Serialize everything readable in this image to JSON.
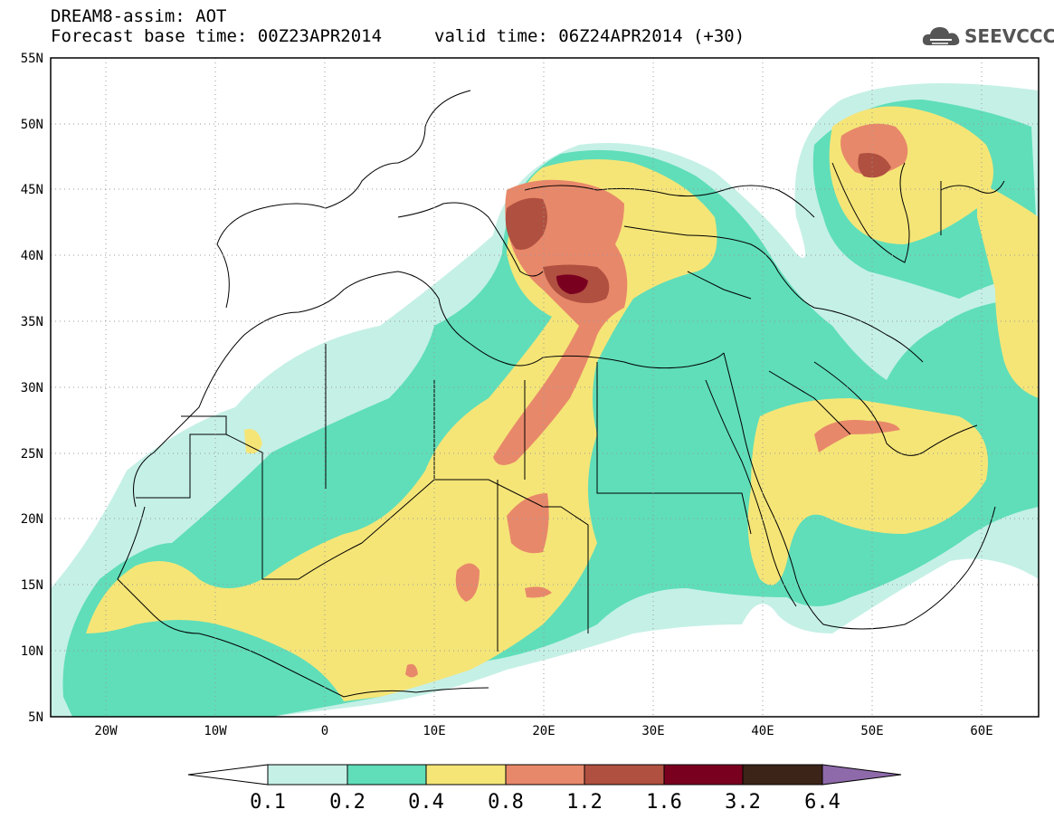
{
  "header": {
    "title": "DREAM8-assim: AOT",
    "base_time": "Forecast base time: 00Z23APR2014",
    "valid_time": "valid time: 06Z24APR2014 (+30)"
  },
  "logo": {
    "text": "SEEVCCC",
    "icon": "cloud-icon",
    "color": "#555555"
  },
  "map": {
    "lat_labels": [
      "55N",
      "50N",
      "45N",
      "40N",
      "35N",
      "30N",
      "25N",
      "20N",
      "15N",
      "10N",
      "5N"
    ],
    "lon_labels": [
      "20W",
      "10W",
      "0",
      "10E",
      "20E",
      "30E",
      "40E",
      "50E",
      "60E"
    ],
    "lon_range": [
      -25,
      65
    ],
    "lat_range": [
      5,
      55
    ],
    "grid": "dotted"
  },
  "colorbar": {
    "labels": [
      "0.1",
      "0.2",
      "0.4",
      "0.8",
      "1.2",
      "1.6",
      "3.2",
      "6.4"
    ],
    "colors": [
      "#ffffff",
      "#c5f0e6",
      "#5fdeb9",
      "#f5e577",
      "#e8886a",
      "#b05040",
      "#7a0020",
      "#3c2418",
      "#8e6aaa"
    ]
  }
}
